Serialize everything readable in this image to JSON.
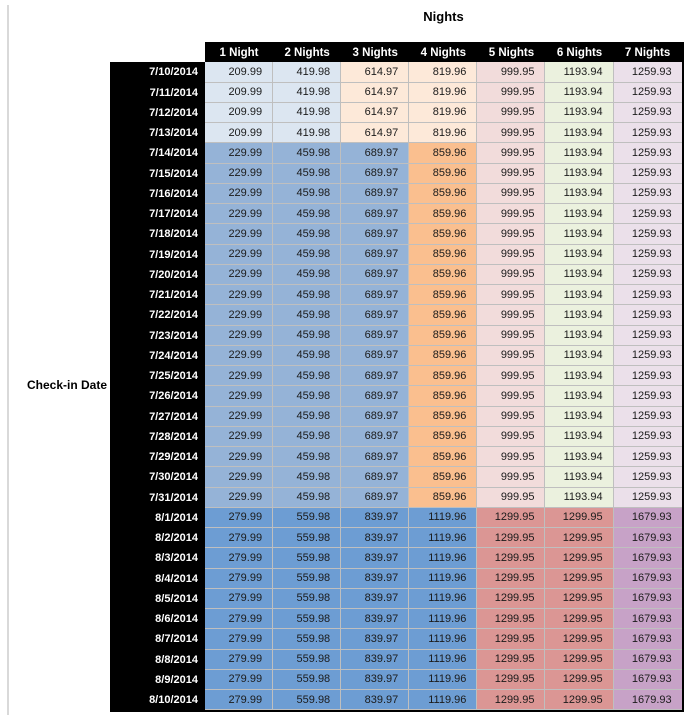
{
  "table": {
    "title": "Nights",
    "row_axis_label": "Check-in Date"
  },
  "palette": {
    "header_bg": "#000000",
    "header_text": "#ffffff",
    "grid_line": "#bfbfbf",
    "sheet_edge_line": "#d9d9d9",
    "light_blue": "#dce6f1",
    "medium_blue": "#95b3d7",
    "dark_blue": "#6d9dd3",
    "light_orange": "#fde9d9",
    "medium_orange": "#fabf8f",
    "light_pink": "#f2dcdb",
    "red": "#db9694",
    "light_green": "#ebf1de",
    "light_lavender": "#ebe0ea",
    "purple": "#c7a2c7"
  },
  "fills": {
    "jul_10_13": [
      "light_blue",
      "light_blue",
      "light_orange",
      "light_orange",
      "light_pink",
      "light_green",
      "light_lavender"
    ],
    "jul_14_31": [
      "medium_blue",
      "medium_blue",
      "medium_blue",
      "medium_orange",
      "light_pink",
      "light_green",
      "light_lavender"
    ],
    "aug_1_10": [
      "dark_blue",
      "dark_blue",
      "dark_blue",
      "dark_blue",
      "red",
      "red",
      "purple"
    ]
  },
  "chart_data": {
    "type": "table",
    "title": "Nights",
    "row_axis_label": "Check-in Date",
    "columns": [
      "1 Night",
      "2 Nights",
      "3 Nights",
      "4 Nights",
      "5 Nights",
      "6 Nights",
      "7 Nights"
    ],
    "bands": [
      {
        "name": "jul_10_13",
        "dates": [
          "7/10/2014",
          "7/11/2014",
          "7/12/2014",
          "7/13/2014"
        ],
        "values": [
          209.99,
          419.98,
          614.97,
          819.96,
          999.95,
          1193.94,
          1259.93
        ]
      },
      {
        "name": "jul_14_31",
        "dates": [
          "7/14/2014",
          "7/15/2014",
          "7/16/2014",
          "7/17/2014",
          "7/18/2014",
          "7/19/2014",
          "7/20/2014",
          "7/21/2014",
          "7/22/2014",
          "7/23/2014",
          "7/24/2014",
          "7/25/2014",
          "7/26/2014",
          "7/27/2014",
          "7/28/2014",
          "7/29/2014",
          "7/30/2014",
          "7/31/2014"
        ],
        "values": [
          229.99,
          459.98,
          689.97,
          859.96,
          999.95,
          1193.94,
          1259.93
        ]
      },
      {
        "name": "aug_1_10",
        "dates": [
          "8/1/2014",
          "8/2/2014",
          "8/3/2014",
          "8/4/2014",
          "8/5/2014",
          "8/6/2014",
          "8/7/2014",
          "8/8/2014",
          "8/9/2014",
          "8/10/2014"
        ],
        "values": [
          279.99,
          559.98,
          839.97,
          1119.96,
          1299.95,
          1299.95,
          1679.93
        ]
      }
    ]
  }
}
